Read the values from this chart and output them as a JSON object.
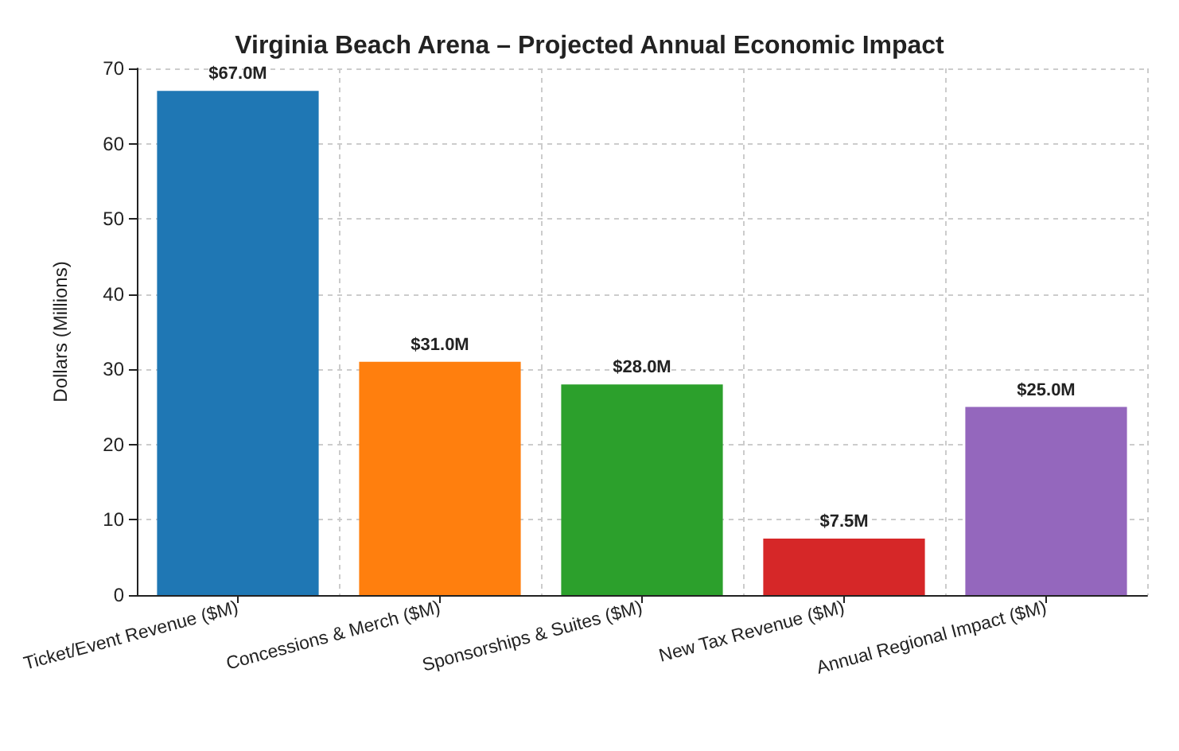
{
  "chart_data": {
    "type": "bar",
    "title": "Virginia Beach Arena – Projected Annual Economic Impact",
    "ylabel": "Dollars (Millions)",
    "categories": [
      "Ticket/Event Revenue ($M)",
      "Concessions & Merch ($M)",
      "Sponsorships & Suites ($M)",
      "New Tax Revenue ($M)",
      "Annual Regional Impact ($M)"
    ],
    "values": [
      67,
      31,
      28,
      7.5,
      25
    ],
    "colors": [
      "#1f77b4",
      "#ff7f0e",
      "#2ca02c",
      "#d62728",
      "#9467bd"
    ],
    "value_labels": [
      "$67.0M",
      "$31.0M",
      "$28.0M",
      "$7.5M",
      "$25.0M"
    ],
    "ylim": [
      0,
      70
    ],
    "yticks": [
      0,
      10,
      20,
      30,
      40,
      50,
      60,
      70
    ],
    "grid": true
  }
}
